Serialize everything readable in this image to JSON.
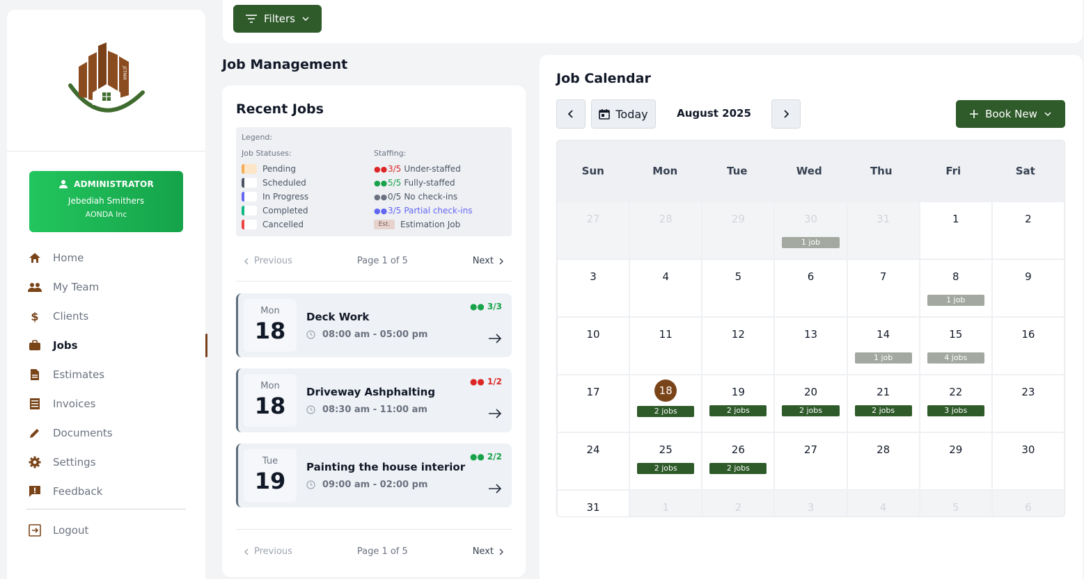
{
  "sidebar": {
    "logo_text": "JETMIR",
    "admin": {
      "role": "ADMINISTRATOR",
      "name": "Jebediah Smithers",
      "org": "AONDA Inc"
    },
    "nav": [
      {
        "label": "Home",
        "icon": "home-icon"
      },
      {
        "label": "My Team",
        "icon": "team-icon"
      },
      {
        "label": "Clients",
        "icon": "dollar-icon"
      },
      {
        "label": "Jobs",
        "icon": "briefcase-icon",
        "active": true
      },
      {
        "label": "Estimates",
        "icon": "document-icon"
      },
      {
        "label": "Invoices",
        "icon": "invoice-icon"
      },
      {
        "label": "Documents",
        "icon": "pencil-icon"
      },
      {
        "label": "Settings",
        "icon": "gear-icon"
      },
      {
        "label": "Feedback",
        "icon": "feedback-icon"
      }
    ],
    "logout": "Logout"
  },
  "toolbar": {
    "filters_label": "Filters"
  },
  "page_title": "Job Management",
  "recent_jobs": {
    "title": "Recent Jobs",
    "legend": {
      "title": "Legend:",
      "statuses_heading": "Job Statuses:",
      "staffing_heading": "Staffing:",
      "statuses": [
        {
          "label": "Pending",
          "color": "#f6ad55"
        },
        {
          "label": "Scheduled",
          "color": "#4b5563"
        },
        {
          "label": "In Progress",
          "color": "#6366f1"
        },
        {
          "label": "Completed",
          "color": "#10b981"
        },
        {
          "label": "Cancelled",
          "color": "#ef4444"
        }
      ],
      "staffing": [
        {
          "frac": "3/5",
          "label": "Under-staffed",
          "color": "#dc2626"
        },
        {
          "frac": "5/5",
          "label": "Fully-staffed",
          "color": "#16a34a"
        },
        {
          "frac": "0/5",
          "label": "No check-ins",
          "color": "#6b7280"
        },
        {
          "frac": "3/5",
          "label": "Partial check-ins",
          "color": "#6366f1"
        }
      ],
      "estimation_badge": "Est.",
      "estimation_label": "Estimation Job"
    },
    "pager": {
      "prev": "Previous",
      "info": "Page 1 of 5",
      "next": "Next"
    },
    "jobs": [
      {
        "dow": "Mon",
        "day": "18",
        "name": "Deck Work",
        "time": "08:00 am - 05:00 pm",
        "staff": "3/3",
        "staff_color": "#16a34a"
      },
      {
        "dow": "Mon",
        "day": "18",
        "name": "Driveway Ashphalting",
        "time": "08:30 am - 11:00 am",
        "staff": "1/2",
        "staff_color": "#dc2626"
      },
      {
        "dow": "Tue",
        "day": "19",
        "name": "Painting the house interior",
        "time": "09:00 am - 02:00 pm",
        "staff": "2/2",
        "staff_color": "#16a34a"
      }
    ]
  },
  "calendar": {
    "title": "Job Calendar",
    "today_label": "Today",
    "month": "August 2025",
    "book_label": "Book New",
    "weekdays": [
      "Sun",
      "Mon",
      "Tue",
      "Wed",
      "Thu",
      "Fri",
      "Sat"
    ],
    "weeks": [
      [
        {
          "d": "27",
          "o": true
        },
        {
          "d": "28",
          "o": true
        },
        {
          "d": "29",
          "o": true
        },
        {
          "d": "30",
          "o": true,
          "b": "1 job"
        },
        {
          "d": "31",
          "o": true
        },
        {
          "d": "1"
        },
        {
          "d": "2"
        }
      ],
      [
        {
          "d": "3"
        },
        {
          "d": "4"
        },
        {
          "d": "5"
        },
        {
          "d": "6"
        },
        {
          "d": "7"
        },
        {
          "d": "8",
          "b": "1 job"
        },
        {
          "d": "9"
        }
      ],
      [
        {
          "d": "10"
        },
        {
          "d": "11"
        },
        {
          "d": "12"
        },
        {
          "d": "13"
        },
        {
          "d": "14",
          "b": "1 job"
        },
        {
          "d": "15",
          "b": "4 jobs"
        },
        {
          "d": "16"
        }
      ],
      [
        {
          "d": "17"
        },
        {
          "d": "18",
          "today": true,
          "b": "2 jobs",
          "cur": true
        },
        {
          "d": "19",
          "b": "2 jobs",
          "cur": true
        },
        {
          "d": "20",
          "b": "2 jobs",
          "cur": true
        },
        {
          "d": "21",
          "b": "2 jobs",
          "cur": true
        },
        {
          "d": "22",
          "b": "3 jobs",
          "cur": true
        },
        {
          "d": "23"
        }
      ],
      [
        {
          "d": "24"
        },
        {
          "d": "25",
          "b": "2 jobs",
          "cur": true
        },
        {
          "d": "26",
          "b": "2 jobs",
          "cur": true
        },
        {
          "d": "27"
        },
        {
          "d": "28"
        },
        {
          "d": "29"
        },
        {
          "d": "30"
        }
      ],
      [
        {
          "d": "31"
        },
        {
          "d": "1",
          "o": true
        },
        {
          "d": "2",
          "o": true
        },
        {
          "d": "3",
          "o": true
        },
        {
          "d": "4",
          "o": true
        },
        {
          "d": "5",
          "o": true
        },
        {
          "d": "6",
          "o": true
        }
      ]
    ]
  }
}
